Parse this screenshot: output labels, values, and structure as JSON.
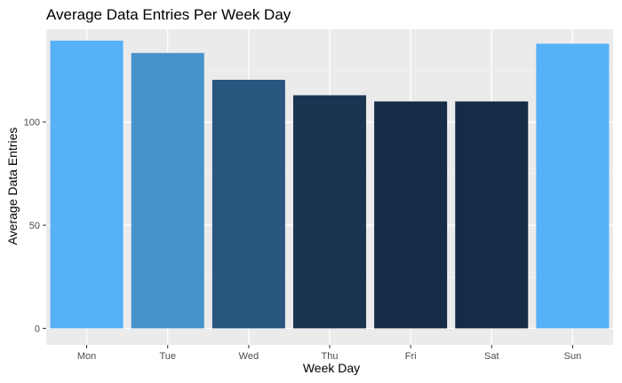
{
  "chart_data": {
    "type": "bar",
    "title": "Average Data Entries Per Week Day",
    "xlabel": "Week Day",
    "ylabel": "Average Data Entries",
    "categories": [
      "Mon",
      "Tue",
      "Wed",
      "Thu",
      "Fri",
      "Sat",
      "Sun"
    ],
    "values": [
      139.5,
      133.5,
      120.5,
      113,
      110,
      110,
      138
    ],
    "ylim": [
      -8,
      145
    ],
    "yticks": [
      0,
      50,
      100
    ],
    "ytick_labels": [
      "0",
      "50",
      "100"
    ],
    "bar_colors": [
      "#56b1f7",
      "#4892cc",
      "#2a5780",
      "#1b3452",
      "#162b45",
      "#162b45",
      "#56b1f7"
    ],
    "grid": true,
    "panel_background": "#ebebeb",
    "legend": "none"
  }
}
